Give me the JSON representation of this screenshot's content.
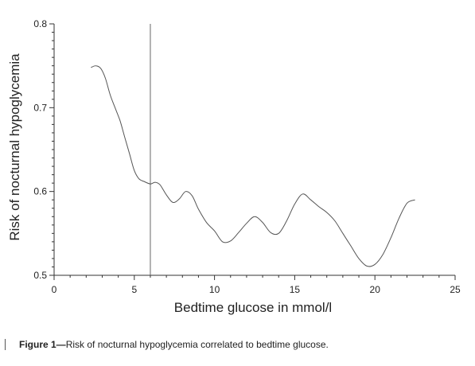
{
  "chart_data": {
    "type": "line",
    "xlabel": "Bedtime glucose in mmol/l",
    "ylabel": "Risk of nocturnal hypoglycemia",
    "xlim": [
      0,
      25
    ],
    "ylim": [
      0.5,
      0.8
    ],
    "xticks": [
      0,
      5,
      10,
      15,
      20,
      25
    ],
    "yticks": [
      0.5,
      0.6,
      0.7,
      0.8
    ],
    "ytick_labels": [
      "0.5",
      "0.6",
      "0.7",
      "0.8"
    ],
    "reference_line_x": 6,
    "grid": false,
    "series": [
      {
        "color": "#555555",
        "x": [
          2.3,
          2.6,
          2.9,
          3.2,
          3.5,
          3.8,
          4.1,
          4.4,
          4.7,
          5.0,
          5.3,
          5.6,
          6.0,
          6.3,
          6.6,
          7.0,
          7.4,
          7.8,
          8.2,
          8.6,
          9.0,
          9.5,
          10.0,
          10.5,
          11.0,
          11.5,
          12.0,
          12.5,
          13.0,
          13.5,
          14.0,
          14.5,
          15.0,
          15.5,
          16.0,
          16.5,
          17.0,
          17.5,
          18.0,
          18.5,
          19.0,
          19.5,
          20.0,
          20.5,
          21.0,
          21.5,
          22.0,
          22.5
        ],
        "y": [
          0.748,
          0.75,
          0.747,
          0.735,
          0.715,
          0.7,
          0.685,
          0.665,
          0.645,
          0.625,
          0.615,
          0.612,
          0.609,
          0.611,
          0.608,
          0.596,
          0.587,
          0.591,
          0.6,
          0.595,
          0.579,
          0.563,
          0.553,
          0.54,
          0.541,
          0.551,
          0.562,
          0.57,
          0.563,
          0.551,
          0.55,
          0.565,
          0.585,
          0.597,
          0.59,
          0.582,
          0.575,
          0.565,
          0.55,
          0.535,
          0.52,
          0.511,
          0.513,
          0.525,
          0.545,
          0.568,
          0.586,
          0.59
        ]
      }
    ]
  },
  "caption": {
    "figure_label": "Figure 1—",
    "text": "Risk of nocturnal hypoglycemia correlated to bedtime glucose."
  }
}
